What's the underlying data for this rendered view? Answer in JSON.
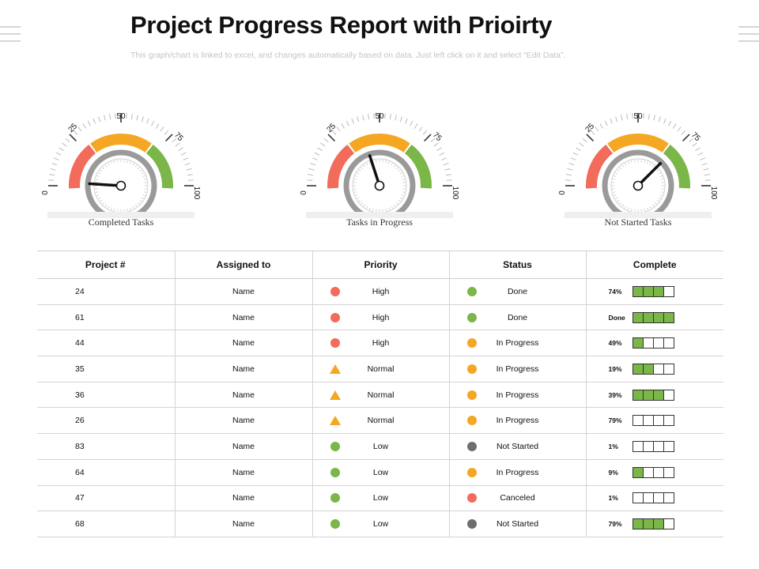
{
  "title": "Project Progress Report with Prioirty",
  "subtitle": "This graph/chart is linked to excel, and changes automatically based on data. Just left click on it and select “Edit Data”.",
  "colors": {
    "red": "#f26b5b",
    "orange": "#f5a623",
    "green": "#7ab648",
    "gray": "#6d6e71",
    "ring": "#9a9a9a"
  },
  "gauges": [
    {
      "label": "Completed Tasks",
      "value": 2,
      "ticks": [
        "0",
        "25",
        "50",
        "75",
        "100"
      ]
    },
    {
      "label": "Tasks in Progress",
      "value": 40,
      "ticks": [
        "0",
        "25",
        "50",
        "75",
        "100"
      ]
    },
    {
      "label": "Not Started Tasks",
      "value": 75,
      "ticks": [
        "0",
        "25",
        "50",
        "75",
        "100"
      ]
    }
  ],
  "table": {
    "headers": [
      "Project #",
      "Assigned to",
      "Priority",
      "Status",
      "Complete"
    ],
    "rows": [
      {
        "project": "24",
        "assigned": "Name",
        "priority": "High",
        "priority_icon": "circle",
        "priority_color": "#f26b5b",
        "status": "Done",
        "status_color": "#7ab648",
        "complete": "74%",
        "filled": 3
      },
      {
        "project": "61",
        "assigned": "Name",
        "priority": "High",
        "priority_icon": "circle",
        "priority_color": "#f26b5b",
        "status": "Done",
        "status_color": "#7ab648",
        "complete": "Done",
        "filled": 4
      },
      {
        "project": "44",
        "assigned": "Name",
        "priority": "High",
        "priority_icon": "circle",
        "priority_color": "#f26b5b",
        "status": "In Progress",
        "status_color": "#f5a623",
        "complete": "49%",
        "filled": 1
      },
      {
        "project": "35",
        "assigned": "Name",
        "priority": "Normal",
        "priority_icon": "triangle",
        "priority_color": "#f5a623",
        "status": "In Progress",
        "status_color": "#f5a623",
        "complete": "19%",
        "filled": 2
      },
      {
        "project": "36",
        "assigned": "Name",
        "priority": "Normal",
        "priority_icon": "triangle",
        "priority_color": "#f5a623",
        "status": "In Progress",
        "status_color": "#f5a623",
        "complete": "39%",
        "filled": 3
      },
      {
        "project": "26",
        "assigned": "Name",
        "priority": "Normal",
        "priority_icon": "triangle",
        "priority_color": "#f5a623",
        "status": "In Progress",
        "status_color": "#f5a623",
        "complete": "79%",
        "filled": 0
      },
      {
        "project": "83",
        "assigned": "Name",
        "priority": "Low",
        "priority_icon": "circle",
        "priority_color": "#7ab648",
        "status": "Not Started",
        "status_color": "#6d6e71",
        "complete": "1%",
        "filled": 0
      },
      {
        "project": "64",
        "assigned": "Name",
        "priority": "Low",
        "priority_icon": "circle",
        "priority_color": "#7ab648",
        "status": "In Progress",
        "status_color": "#f5a623",
        "complete": "9%",
        "filled": 1
      },
      {
        "project": "47",
        "assigned": "Name",
        "priority": "Low",
        "priority_icon": "circle",
        "priority_color": "#7ab648",
        "status": "Canceled",
        "status_color": "#f26b5b",
        "complete": "1%",
        "filled": 0
      },
      {
        "project": "68",
        "assigned": "Name",
        "priority": "Low",
        "priority_icon": "circle",
        "priority_color": "#7ab648",
        "status": "Not Started",
        "status_color": "#6d6e71",
        "complete": "79%",
        "filled": 3
      }
    ]
  }
}
